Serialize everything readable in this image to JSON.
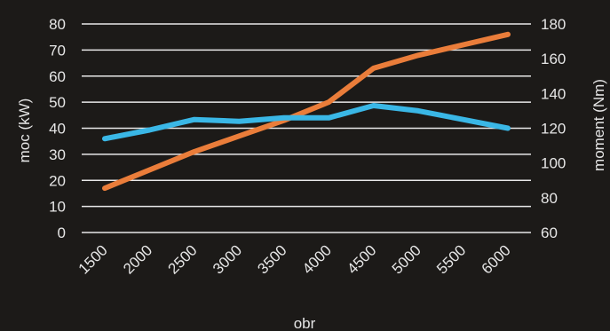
{
  "chart_data": {
    "type": "line",
    "title": "",
    "xlabel": "obr",
    "ylabel": "moc (kW)",
    "y2label": "moment (Nm)",
    "categories": [
      "1500",
      "2000",
      "2500",
      "3000",
      "3500",
      "4000",
      "4500",
      "5000",
      "5500",
      "6000"
    ],
    "ylim": [
      0,
      80
    ],
    "yticks": [
      0,
      10,
      20,
      30,
      40,
      50,
      60,
      70,
      80
    ],
    "y2lim": [
      60,
      180
    ],
    "y2ticks": [
      60,
      80,
      100,
      120,
      140,
      160,
      180
    ],
    "grid": true,
    "legend": "none",
    "series": [
      {
        "axis": "left",
        "color": "#ea7d3a",
        "values": [
          17,
          24,
          31,
          37,
          43,
          50,
          63,
          68,
          72,
          76
        ]
      },
      {
        "axis": "right",
        "color": "#3ab7e6",
        "values": [
          114,
          119,
          125,
          124,
          126,
          126,
          133,
          130,
          125,
          120
        ]
      }
    ],
    "background": "#1c1a18",
    "text_color": "#e6e6e6",
    "grid_color": "#e8e8e8"
  }
}
